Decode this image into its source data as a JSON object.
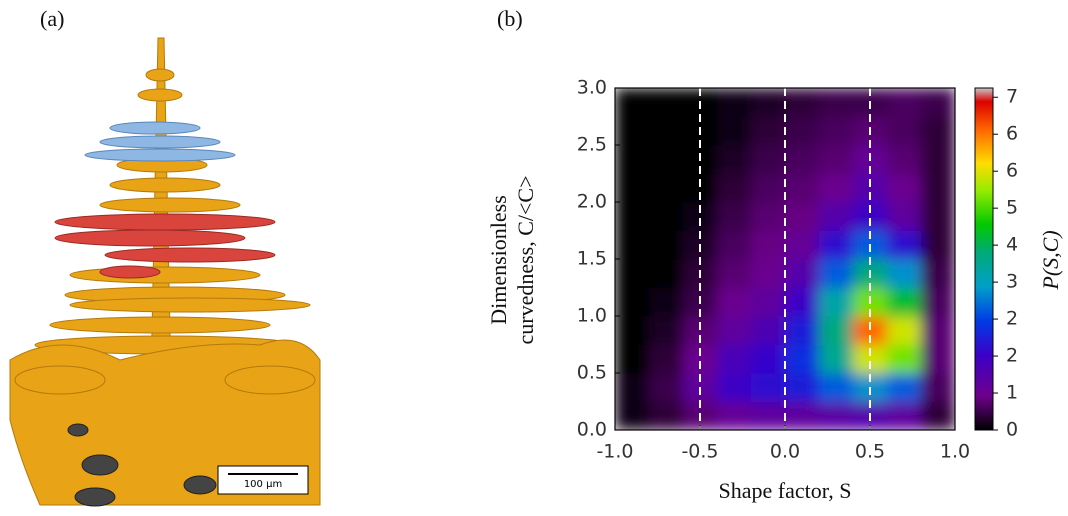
{
  "panel_a": {
    "label": "(a)",
    "scale_bar": "100 µm"
  },
  "chart_data": {
    "type": "heatmap",
    "panel_label": "(b)",
    "x_label": "Shape factor, S",
    "y_label": [
      "Dimensionless",
      "curvedness, C/<C>"
    ],
    "colorbar_label": "P(S,C)",
    "colormap": "nipy_spectral",
    "xlim": [
      -1,
      1
    ],
    "xticks": [
      {
        "value": -1,
        "label": "-1.0"
      },
      {
        "value": -0.5,
        "label": "-0.5"
      },
      {
        "value": 0,
        "label": "0.0"
      },
      {
        "value": 0.5,
        "label": "0.5"
      },
      {
        "value": 1,
        "label": "1.0"
      }
    ],
    "ylim": [
      0,
      3
    ],
    "yticks": [
      {
        "value": 0,
        "label": "0.0"
      },
      {
        "value": 0.5,
        "label": "0.5"
      },
      {
        "value": 1,
        "label": "1.0"
      },
      {
        "value": 1.5,
        "label": "1.5"
      },
      {
        "value": 2,
        "label": "2.0"
      },
      {
        "value": 2.5,
        "label": "2.5"
      },
      {
        "value": 3,
        "label": "3.0"
      }
    ],
    "clim": [
      0,
      7.4
    ],
    "cticks": [
      {
        "value": 0,
        "label": "0"
      },
      {
        "value": 0.8,
        "label": "1"
      },
      {
        "value": 1.6,
        "label": "2"
      },
      {
        "value": 2.4,
        "label": "2"
      },
      {
        "value": 3.2,
        "label": "3"
      },
      {
        "value": 4.0,
        "label": "4"
      },
      {
        "value": 4.8,
        "label": "5"
      },
      {
        "value": 5.6,
        "label": "6"
      },
      {
        "value": 6.4,
        "label": "6"
      },
      {
        "value": 7.2,
        "label": "7"
      }
    ],
    "vlines": [
      -0.5,
      0,
      0.5
    ],
    "xbins": [
      -1,
      -0.8,
      -0.6,
      -0.4,
      -0.2,
      0,
      0.2,
      0.4,
      0.6,
      0.8,
      1
    ],
    "ybins": [
      0,
      0.25,
      0.5,
      0.75,
      1,
      1.25,
      1.5,
      1.75,
      2,
      2.25,
      2.5,
      2.75,
      3
    ],
    "values": [
      [
        0.1,
        0.3,
        0.6,
        0.9,
        1.0,
        1.0,
        1.1,
        1.2,
        1.0,
        0.3
      ],
      [
        0.1,
        0.4,
        1.0,
        1.6,
        1.8,
        2.0,
        2.6,
        3.0,
        2.6,
        0.5
      ],
      [
        0,
        0.3,
        0.8,
        1.4,
        1.7,
        2.2,
        3.6,
        5.5,
        5.0,
        0.6
      ],
      [
        0,
        0.2,
        0.6,
        1.0,
        1.3,
        2.0,
        3.8,
        6.5,
        5.5,
        0.6
      ],
      [
        0,
        0.1,
        0.4,
        0.8,
        1.0,
        1.6,
        3.4,
        5.0,
        4.2,
        0.5
      ],
      [
        0,
        0,
        0.3,
        0.6,
        0.8,
        1.2,
        2.6,
        3.8,
        3.0,
        0.4
      ],
      [
        0,
        0,
        0.2,
        0.5,
        0.7,
        0.9,
        1.8,
        2.6,
        1.8,
        0.3
      ],
      [
        0,
        0,
        0.1,
        0.4,
        0.6,
        0.7,
        1.2,
        1.6,
        1.0,
        0.3
      ],
      [
        0,
        0,
        0,
        0.3,
        0.5,
        0.6,
        0.8,
        1.2,
        0.8,
        0.3
      ],
      [
        0,
        0,
        0,
        0.2,
        0.4,
        0.5,
        0.6,
        0.9,
        0.6,
        0.3
      ],
      [
        0,
        0,
        0,
        0.1,
        0.3,
        0.4,
        0.5,
        0.6,
        0.5,
        0.3
      ],
      [
        0,
        0,
        0,
        0.1,
        0.2,
        0.3,
        0.4,
        0.4,
        0.5,
        0.4
      ]
    ]
  }
}
